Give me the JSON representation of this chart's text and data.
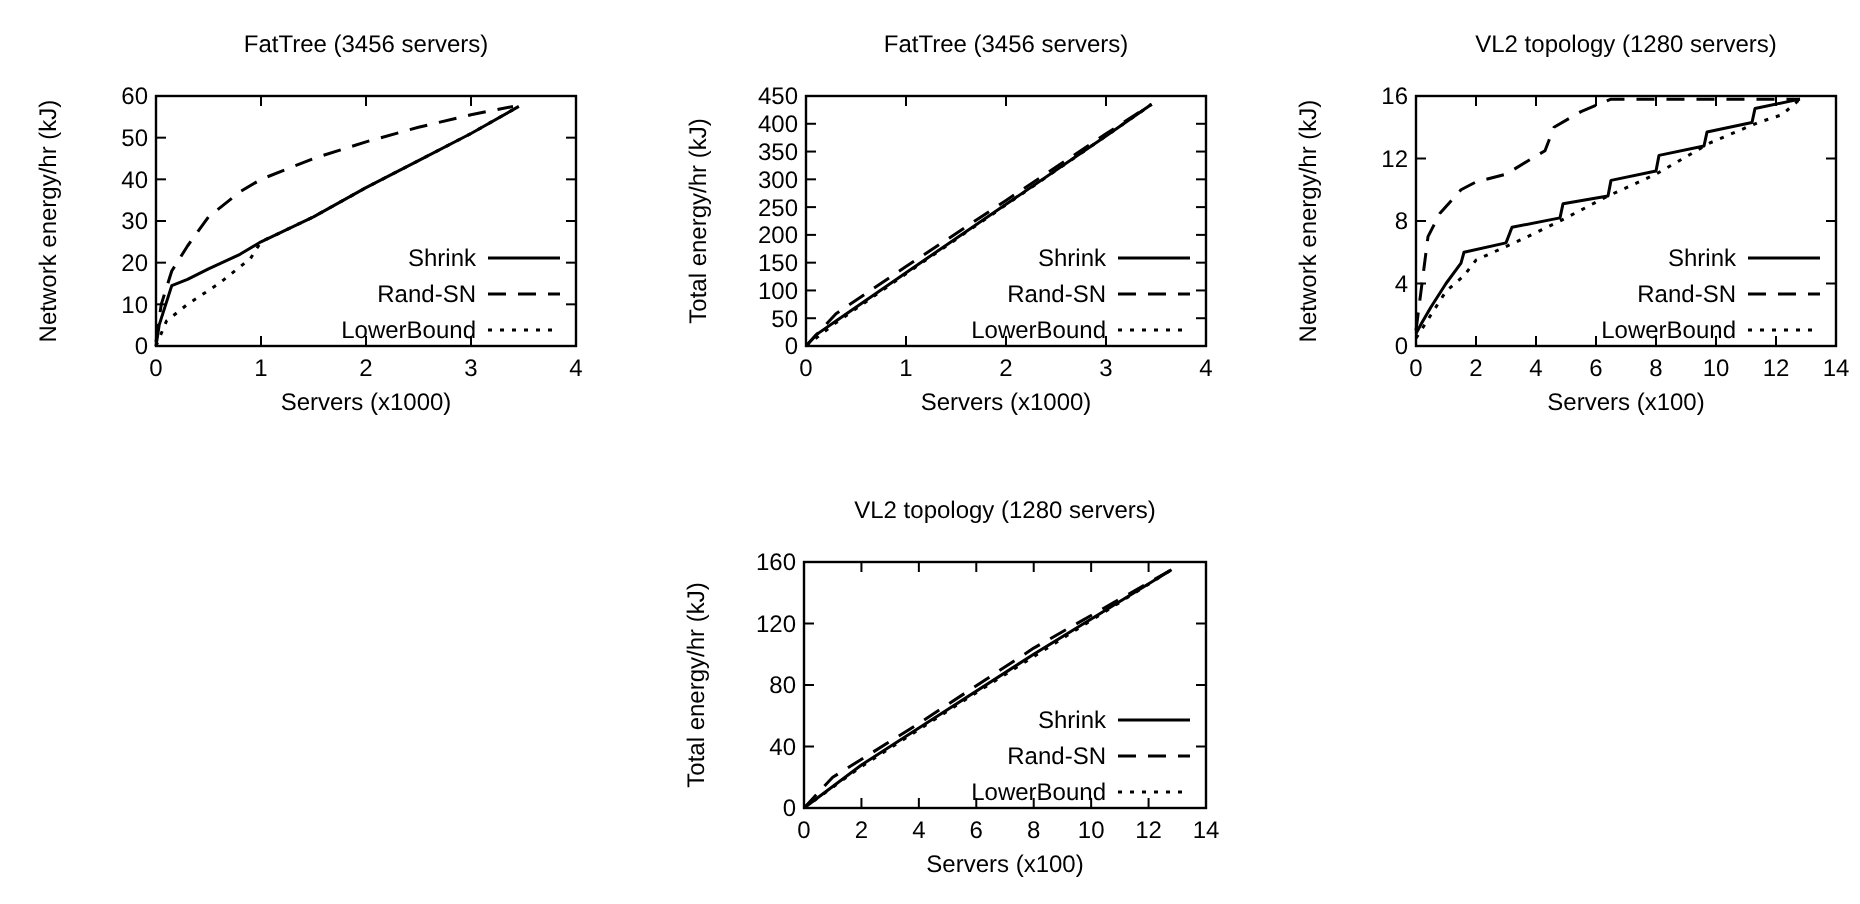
{
  "chart_data": [
    {
      "type": "line",
      "title": "FatTree (3456 servers)",
      "xlabel": "Servers (x1000)",
      "ylabel": "Network energy/hr (kJ)",
      "xlim": [
        0,
        4
      ],
      "xticks": [
        0,
        1,
        2,
        3,
        4
      ],
      "ylim": [
        0,
        60
      ],
      "yticks": [
        0,
        10,
        20,
        30,
        40,
        50,
        60
      ],
      "legend": "bottom right",
      "grid": false,
      "series": [
        {
          "name": "Shrink",
          "color": "#000000",
          "line_style": "solid",
          "x": [
            0,
            0.03,
            0.15,
            0.3,
            0.5,
            0.8,
            1,
            1.5,
            2,
            2.5,
            3,
            3.456
          ],
          "values": [
            0,
            5,
            14.5,
            16,
            18.5,
            22,
            25,
            31,
            38,
            44.5,
            51,
            57.5
          ]
        },
        {
          "name": "Rand-SN",
          "color": "#000000",
          "line_style": "dashed",
          "x": [
            0,
            0.05,
            0.15,
            0.3,
            0.5,
            0.8,
            1,
            1.5,
            2,
            2.5,
            3,
            3.3,
            3.4
          ],
          "values": [
            1,
            10,
            18,
            24,
            31,
            37,
            40,
            45,
            49,
            52.5,
            55.5,
            57,
            57.5
          ]
        },
        {
          "name": "LowerBound",
          "color": "#000000",
          "line_style": "dotted",
          "x": [
            0,
            0.1,
            0.3,
            0.6,
            0.9,
            1,
            1.5,
            2,
            3,
            3.456
          ],
          "values": [
            0,
            6,
            10,
            15,
            21,
            25,
            31,
            38,
            51,
            57.5
          ]
        }
      ]
    },
    {
      "type": "line",
      "title": "FatTree (3456 servers)",
      "xlabel": "Servers (x1000)",
      "ylabel": "Total energy/hr (kJ)",
      "xlim": [
        0,
        4
      ],
      "xticks": [
        0,
        1,
        2,
        3,
        4
      ],
      "ylim": [
        0,
        450
      ],
      "yticks": [
        0,
        50,
        100,
        150,
        200,
        250,
        300,
        350,
        400,
        450
      ],
      "legend": "bottom right",
      "grid": false,
      "series": [
        {
          "name": "Shrink",
          "color": "#000000",
          "line_style": "solid",
          "x": [
            0,
            0.1,
            0.3,
            1,
            2,
            3,
            3.456
          ],
          "values": [
            0,
            20,
            45,
            132,
            255,
            378,
            435
          ]
        },
        {
          "name": "Rand-SN",
          "color": "#000000",
          "line_style": "dashed",
          "x": [
            0,
            0.3,
            1,
            2,
            3,
            3.456
          ],
          "values": [
            0,
            58,
            143,
            262,
            382,
            435
          ]
        },
        {
          "name": "LowerBound",
          "color": "#000000",
          "line_style": "dotted",
          "x": [
            0,
            0.3,
            1,
            2,
            3,
            3.456
          ],
          "values": [
            0,
            42,
            130,
            254,
            378,
            435
          ]
        }
      ]
    },
    {
      "type": "line",
      "title": "VL2 topology (1280 servers)",
      "xlabel": "Servers (x100)",
      "ylabel": "Network energy/hr (kJ)",
      "xlim": [
        0,
        14
      ],
      "xticks": [
        0,
        2,
        4,
        6,
        8,
        10,
        12,
        14
      ],
      "ylim": [
        0,
        16
      ],
      "yticks": [
        0,
        4,
        8,
        12,
        16
      ],
      "legend": "bottom right",
      "grid": false,
      "series": [
        {
          "name": "Shrink",
          "color": "#000000",
          "line_style": "solid",
          "x": [
            0,
            0.2,
            0.5,
            1,
            1.5,
            1.6,
            3,
            3.2,
            4.8,
            4.9,
            6.4,
            6.5,
            8,
            8.1,
            9.6,
            9.7,
            11.2,
            11.3,
            12.8
          ],
          "values": [
            0.8,
            1.5,
            2.5,
            4,
            5.3,
            6,
            6.6,
            7.6,
            8.2,
            9.1,
            9.6,
            10.6,
            11.2,
            12.2,
            12.8,
            13.7,
            14.3,
            15.2,
            15.8
          ]
        },
        {
          "name": "Rand-SN",
          "color": "#000000",
          "line_style": "dashed",
          "x": [
            0,
            0.2,
            0.4,
            0.8,
            1.5,
            2,
            3,
            4.3,
            4.6,
            5.5,
            6.5,
            12.8
          ],
          "values": [
            1,
            4,
            7,
            8.5,
            10,
            10.5,
            11,
            12.5,
            14,
            15,
            15.8,
            15.8
          ]
        },
        {
          "name": "LowerBound",
          "color": "#000000",
          "line_style": "dotted",
          "x": [
            0,
            0.5,
            1,
            1.6,
            2,
            3.5,
            4.8,
            6.4,
            8,
            9.8,
            11.4,
            12.2,
            12.8
          ],
          "values": [
            0.5,
            2,
            3.5,
            4.5,
            5.5,
            6.8,
            8,
            9.6,
            11,
            13,
            14.3,
            14.8,
            15.8
          ]
        }
      ]
    },
    {
      "type": "line",
      "title": "VL2 topology (1280 servers)",
      "xlabel": "Servers (x100)",
      "ylabel": "Total energy/hr (kJ)",
      "xlim": [
        0,
        14
      ],
      "xticks": [
        0,
        2,
        4,
        6,
        8,
        10,
        12,
        14
      ],
      "ylim": [
        0,
        160
      ],
      "yticks": [
        0,
        40,
        80,
        120,
        160
      ],
      "legend": "bottom right",
      "grid": false,
      "series": [
        {
          "name": "Shrink",
          "color": "#000000",
          "line_style": "solid",
          "x": [
            0,
            2,
            4,
            8,
            12.8
          ],
          "values": [
            0,
            28,
            52,
            100,
            155
          ]
        },
        {
          "name": "Rand-SN",
          "color": "#000000",
          "line_style": "dashed",
          "x": [
            0,
            1,
            4,
            8,
            12.8
          ],
          "values": [
            0,
            20,
            55,
            104,
            155
          ]
        },
        {
          "name": "LowerBound",
          "color": "#000000",
          "line_style": "dotted",
          "x": [
            0,
            2,
            6,
            10,
            12.8
          ],
          "values": [
            0,
            27,
            75,
            122,
            155
          ]
        }
      ]
    }
  ]
}
